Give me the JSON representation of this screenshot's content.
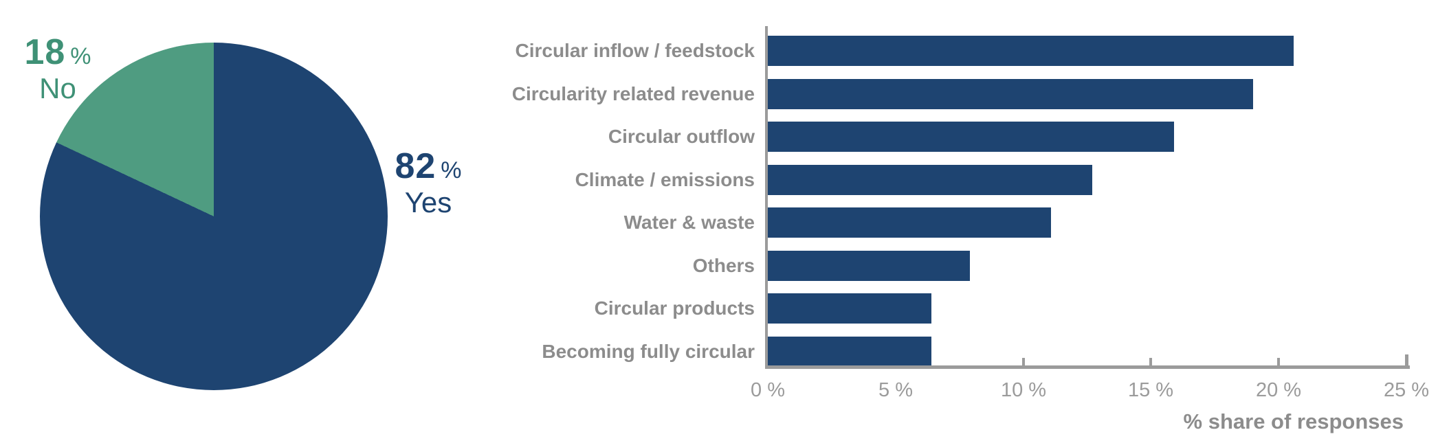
{
  "chart_data": [
    {
      "type": "pie",
      "unit": "%",
      "start_angle": "top",
      "direction": "clockwise",
      "slices": [
        {
          "label": "Yes",
          "value": 82,
          "color": "#1E4471",
          "text_color": "#1E4471"
        },
        {
          "label": "No",
          "value": 18,
          "color": "#4F9C81",
          "text_color": "#3F9176"
        }
      ]
    },
    {
      "type": "bar",
      "orientation": "horizontal",
      "categories": [
        "Circular inflow / feedstock",
        "Circularity related revenue",
        "Circular outflow",
        "Climate / emissions",
        "Water & waste",
        "Others",
        "Circular products",
        "Becoming fully circular"
      ],
      "values": [
        20.6,
        19.0,
        15.9,
        12.7,
        11.1,
        7.9,
        6.4,
        6.4
      ],
      "xlabel": "% share of responses",
      "x_ticks": [
        "0 %",
        "5 %",
        "10 %",
        "15 %",
        "20 %",
        "25 %"
      ],
      "x_tick_values": [
        0,
        5,
        10,
        15,
        20,
        25
      ],
      "xlim": [
        0,
        25
      ],
      "grid": false,
      "legend": "none",
      "bar_color": "#1E4471",
      "category_label_color": "#8C8C8C",
      "axis_color": "#9B9B9B"
    }
  ]
}
